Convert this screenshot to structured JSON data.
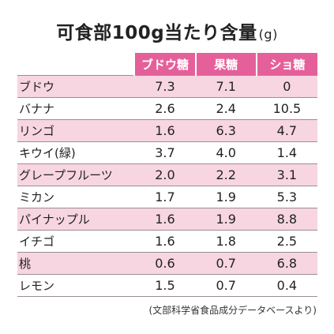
{
  "chart_data": {
    "type": "table",
    "title": "可食部100g当たり含量",
    "unit": "(g)",
    "columns": [
      "ブドウ糖",
      "果糖",
      "ショ糖"
    ],
    "rows": [
      {
        "name": "ブドウ",
        "values": [
          "7.3",
          "7.1",
          "0"
        ]
      },
      {
        "name": "バナナ",
        "values": [
          "2.6",
          "2.4",
          "10.5"
        ]
      },
      {
        "name": "リンゴ",
        "values": [
          "1.6",
          "6.3",
          "4.7"
        ]
      },
      {
        "name": "キウイ(緑)",
        "values": [
          "3.7",
          "4.0",
          "1.4"
        ]
      },
      {
        "name": "グレープフルーツ",
        "values": [
          "2.0",
          "2.2",
          "3.1"
        ]
      },
      {
        "name": "ミカン",
        "values": [
          "1.7",
          "1.9",
          "5.3"
        ]
      },
      {
        "name": "パイナップル",
        "values": [
          "1.6",
          "1.9",
          "8.8"
        ]
      },
      {
        "name": "イチゴ",
        "values": [
          "1.6",
          "1.8",
          "2.5"
        ]
      },
      {
        "name": "桃",
        "values": [
          "0.6",
          "0.7",
          "6.8"
        ]
      },
      {
        "name": "レモン",
        "values": [
          "1.5",
          "0.7",
          "0.4"
        ]
      }
    ],
    "source": "(文部科学省食品成分データベースより)",
    "colors": {
      "header": "#e5609a",
      "stripe": "#f7d5e1",
      "header_text": "#ffffff"
    }
  }
}
